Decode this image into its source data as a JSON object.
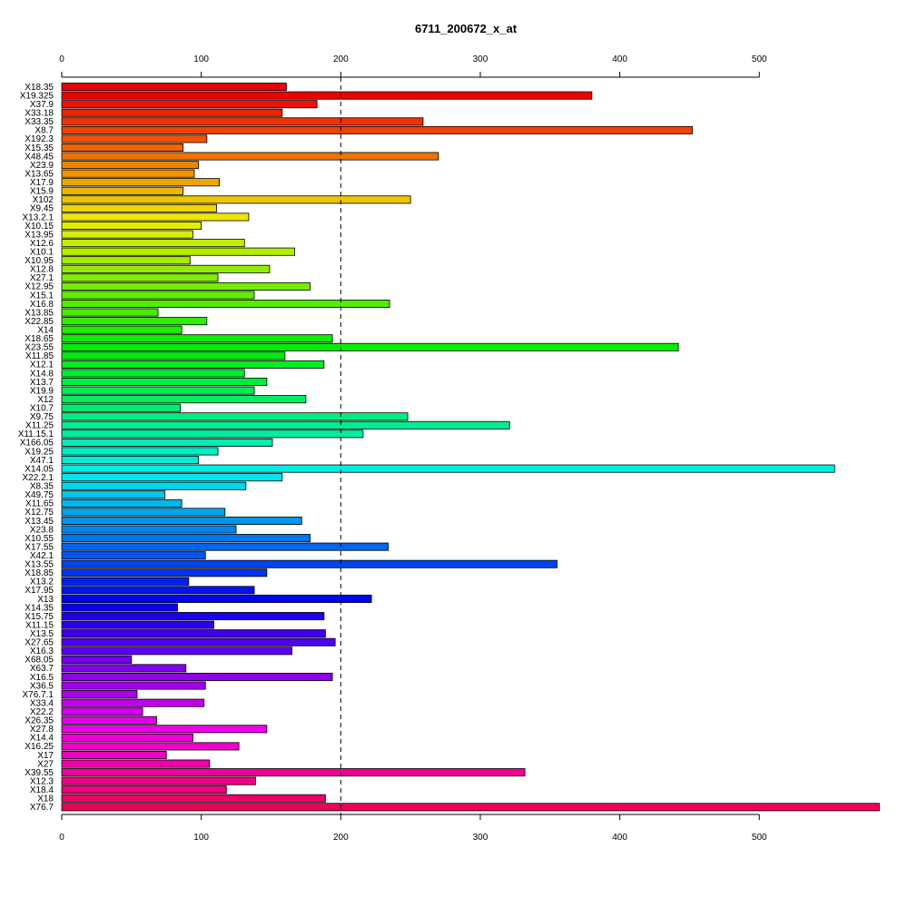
{
  "chart_data": {
    "type": "bar",
    "orientation": "horizontal",
    "title": "6711_200672_x_at",
    "xlabel": "",
    "ylabel": "",
    "xlim": [
      0,
      586
    ],
    "x_ticks": [
      0,
      100,
      200,
      300,
      400,
      500
    ],
    "x_tick_labels": [
      "0",
      "100",
      "200",
      "300",
      "400",
      "500"
    ],
    "reference_line": 200,
    "axes": [
      "top",
      "bottom"
    ],
    "bar_colors": "rainbow palette from red through yellow, green, cyan, blue, magenta and back to red",
    "categories": [
      "X18.35",
      "X19.325",
      "X37.9",
      "X33.18",
      "X33.35",
      "X8.7",
      "X192.3",
      "X15.35",
      "X48.45",
      "X23.9",
      "X13.65",
      "X17.9",
      "X15.9",
      "X102",
      "X9.45",
      "X13.2.1",
      "X10.15",
      "X13.95",
      "X12.6",
      "X10.1",
      "X10.95",
      "X12.8",
      "X27.1",
      "X12.95",
      "X15.1",
      "X16.8",
      "X13.85",
      "X22.85",
      "X14",
      "X18.65",
      "X23.55",
      "X11.85",
      "X12.1",
      "X14.8",
      "X13.7",
      "X19.9",
      "X12",
      "X10.7",
      "X9.75",
      "X11.25",
      "X11.15.1",
      "X166.05",
      "X19.25",
      "X47.1",
      "X14.05",
      "X22.2.1",
      "X8.35",
      "X49.75",
      "X11.65",
      "X12.75",
      "X13.45",
      "X23.8",
      "X10.55",
      "X17.55",
      "X42.1",
      "X13.55",
      "X18.85",
      "X13.2",
      "X17.95",
      "X13",
      "X14.35",
      "X15.75",
      "X11.15",
      "X13.5",
      "X27.65",
      "X16.3",
      "X68.05",
      "X63.7",
      "X16.5",
      "X36.5",
      "X76.7.1",
      "X33.4",
      "X22.2",
      "X26.35",
      "X27.8",
      "X14.4",
      "X16.25",
      "X17",
      "X27",
      "X39.55",
      "X12.3",
      "X18.4",
      "X18",
      "X76.7"
    ],
    "values": [
      161,
      380,
      183,
      158,
      259,
      452,
      104,
      87,
      270,
      98,
      95,
      113,
      87,
      250,
      111,
      134,
      100,
      94,
      131,
      167,
      92,
      149,
      112,
      178,
      138,
      235,
      69,
      104,
      86,
      194,
      442,
      160,
      188,
      131,
      147,
      138,
      175,
      85,
      248,
      321,
      216,
      151,
      112,
      98,
      554,
      158,
      132,
      74,
      86,
      117,
      172,
      125,
      178,
      234,
      103,
      355,
      147,
      91,
      138,
      222,
      83,
      188,
      109,
      189,
      196,
      165,
      50,
      89,
      194,
      103,
      54,
      102,
      58,
      68,
      147,
      94,
      127,
      75,
      106,
      332,
      139,
      118,
      189,
      586
    ]
  }
}
